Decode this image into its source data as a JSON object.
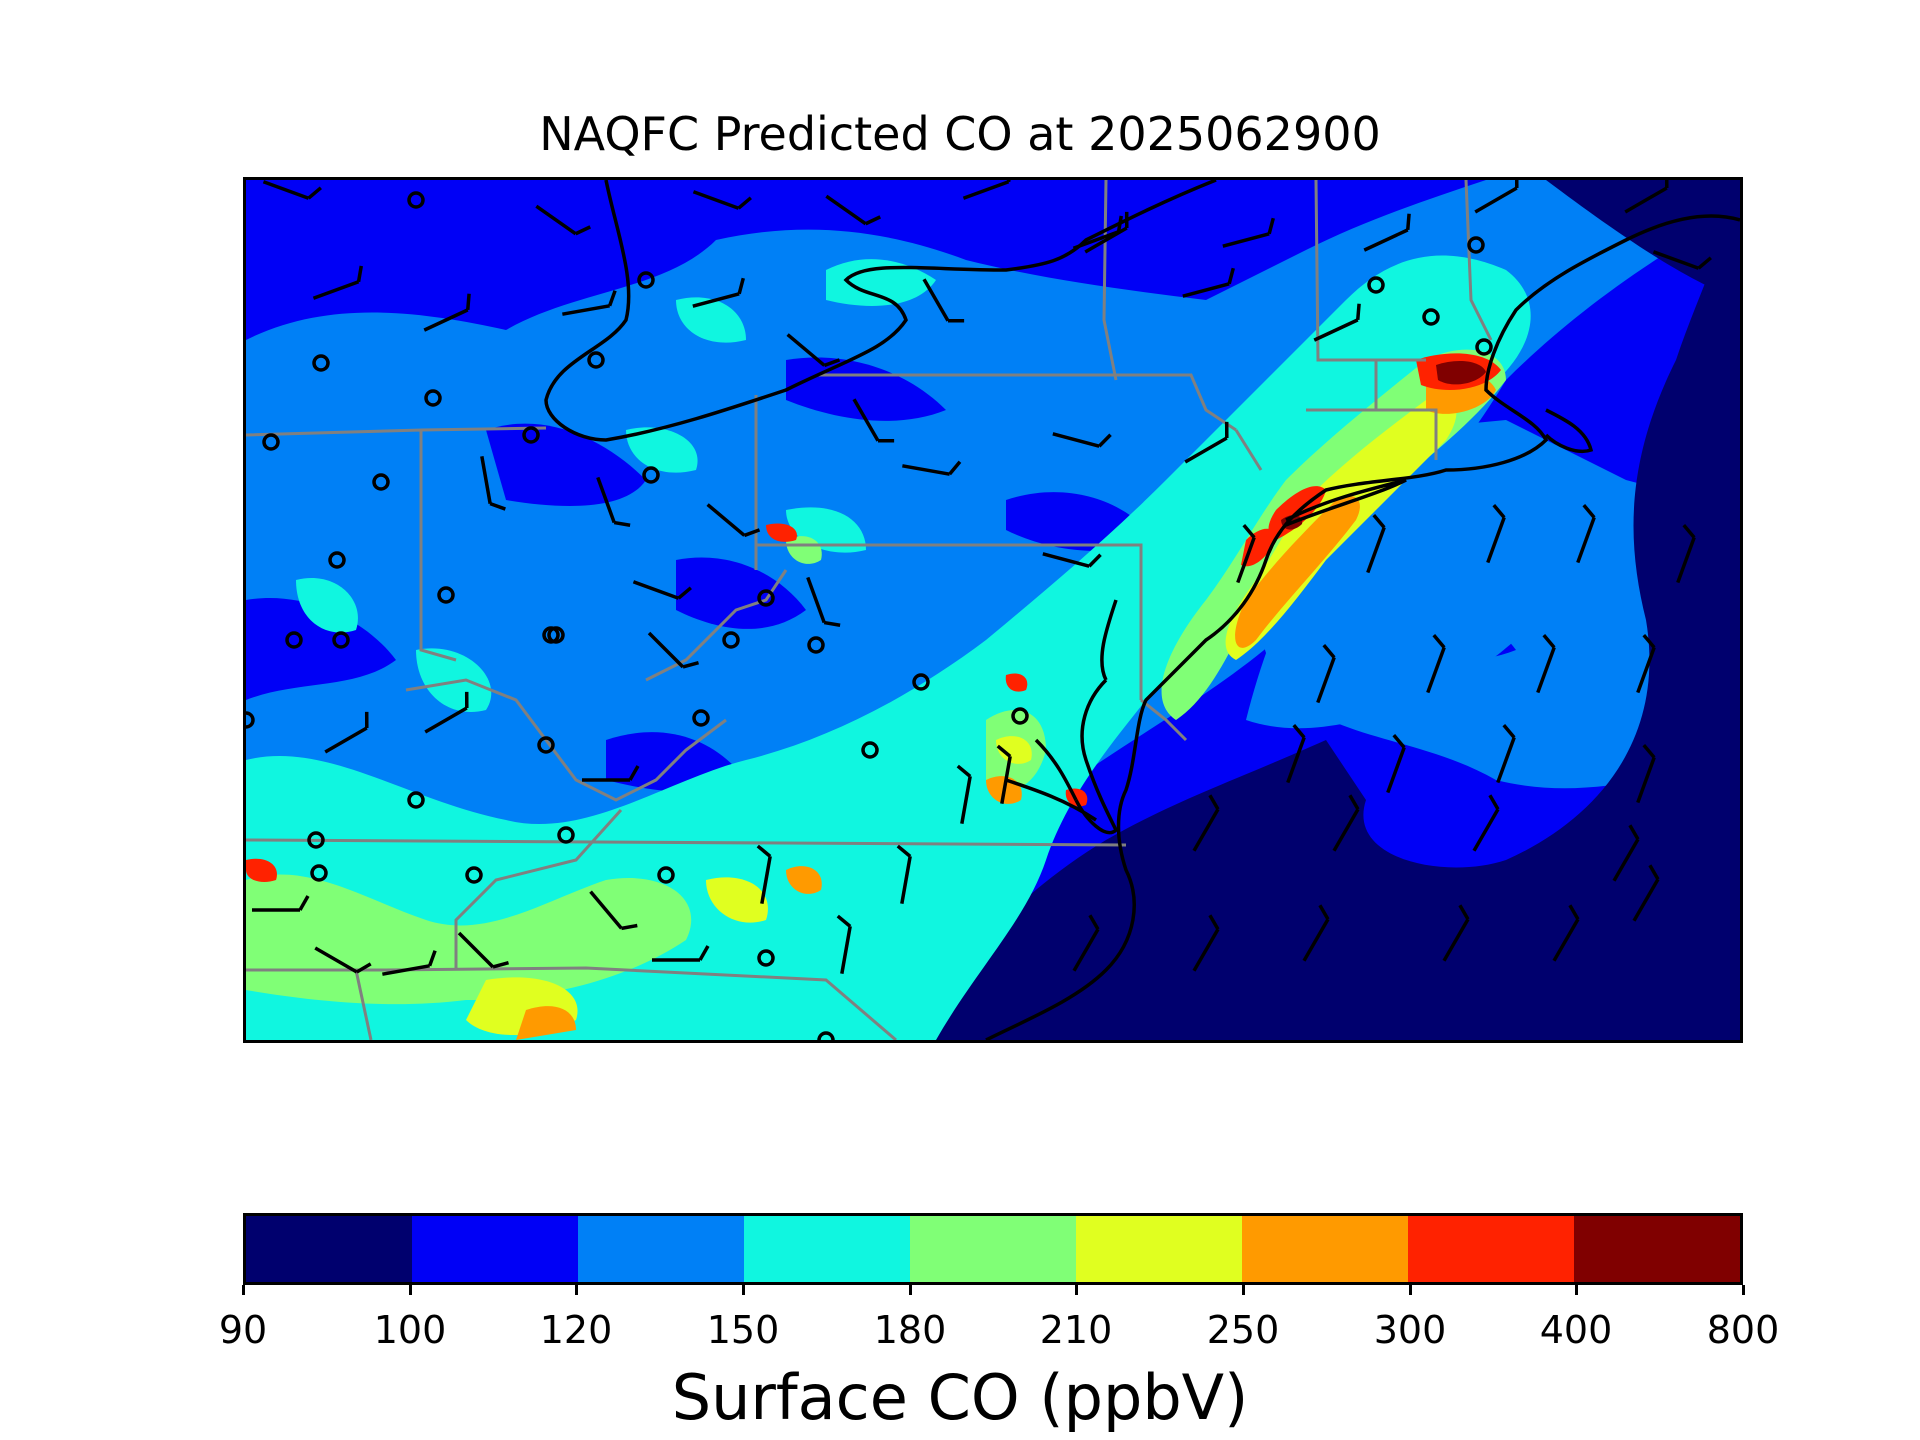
{
  "title": "NAQFC Predicted CO at 2025062900",
  "colorbar": {
    "label": "Surface CO (ppbV)",
    "ticks": [
      "90",
      "100",
      "120",
      "150",
      "180",
      "210",
      "250",
      "300",
      "400",
      "800"
    ],
    "colors": [
      "#00006e",
      "#0000f6",
      "#0080f6",
      "#10f6e0",
      "#80ff76",
      "#e0ff20",
      "#ff9a00",
      "#ff2200",
      "#800000"
    ]
  },
  "map": {
    "region": "U.S. Mid-Atlantic and Northeast",
    "field": "Surface CO",
    "overlays": [
      "wind-barbs",
      "station-circles",
      "state-borders",
      "coastlines"
    ],
    "colors": {
      "state_border": "#808080",
      "coastline": "#000000",
      "barb": "#000000"
    }
  }
}
